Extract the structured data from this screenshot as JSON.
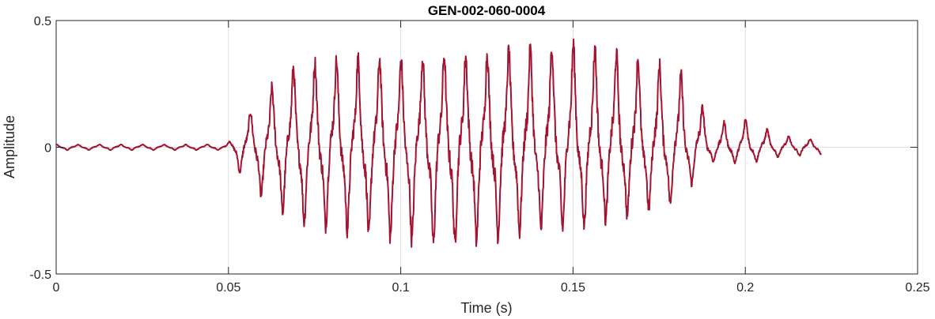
{
  "chart_data": {
    "type": "line",
    "title": "GEN-002-060-0004",
    "xlabel": "Time (s)",
    "ylabel": "Amplitude",
    "xlim": [
      0,
      0.25
    ],
    "ylim": [
      -0.5,
      0.5
    ],
    "x_ticks": [
      0,
      0.05,
      0.1,
      0.15,
      0.2,
      0.25
    ],
    "x_tick_labels": [
      "0",
      "0.05",
      "0.1",
      "0.15",
      "0.2",
      "0.25"
    ],
    "y_ticks": [
      -0.5,
      0,
      0.5
    ],
    "y_tick_labels": [
      "-0.5",
      "0",
      "0.5"
    ],
    "grid": true,
    "line_color": "#a2142f",
    "series": [
      {
        "x_start": 0,
        "x_end": 0.222,
        "envelope": {
          "t": [
            0,
            0.048,
            0.05,
            0.055,
            0.06,
            0.065,
            0.07,
            0.08,
            0.09,
            0.1,
            0.11,
            0.12,
            0.13,
            0.14,
            0.15,
            0.16,
            0.17,
            0.18,
            0.185,
            0.19,
            0.2,
            0.21,
            0.222
          ],
          "max": [
            0.012,
            0.012,
            0.02,
            0.13,
            0.22,
            0.3,
            0.36,
            0.38,
            0.39,
            0.38,
            0.4,
            0.4,
            0.42,
            0.43,
            0.45,
            0.42,
            0.38,
            0.34,
            0.25,
            0.1,
            0.12,
            0.05,
            0.03
          ],
          "min": [
            -0.012,
            -0.012,
            -0.03,
            -0.15,
            -0.22,
            -0.28,
            -0.32,
            -0.35,
            -0.38,
            -0.4,
            -0.42,
            -0.42,
            -0.38,
            -0.36,
            -0.35,
            -0.32,
            -0.28,
            -0.24,
            -0.15,
            -0.06,
            -0.07,
            -0.04,
            -0.03
          ]
        },
        "fundamental_hz": 160
      }
    ]
  }
}
